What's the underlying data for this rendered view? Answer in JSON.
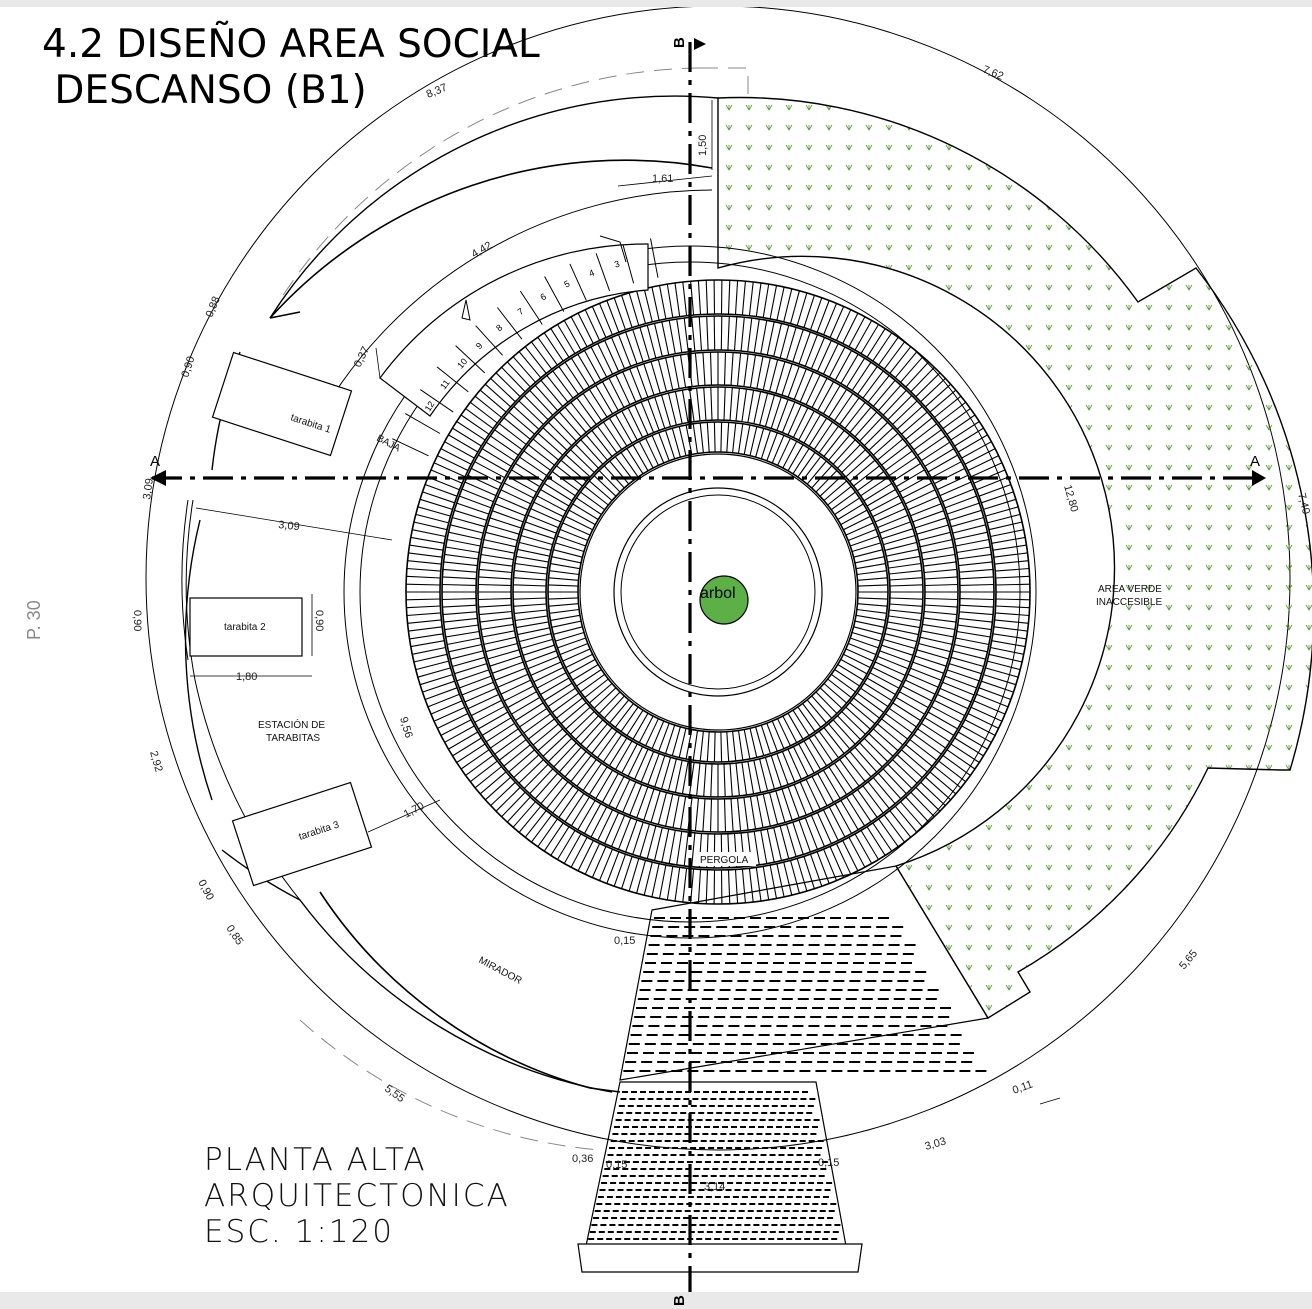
{
  "title": "4.2 DISEÑO AREA SOCIAL\n DESCANSO (B1)",
  "page_number": "P. 30",
  "caption": {
    "line1": "PLANTA ALTA",
    "line2": "ARQUITECTONICA",
    "line3": "ESC. 1:120"
  },
  "section_marks": {
    "horizontal_left": "A",
    "horizontal_right": "A",
    "vertical_top": "B",
    "vertical_bottom": "B"
  },
  "labels": {
    "tarabita_1": "tarabita 1",
    "tarabita_2": "tarabita 2",
    "tarabita_3": "tarabita 3",
    "estacion_line1": "ESTACIÓN DE",
    "estacion_line2": "TARABITAS",
    "mirador": "MIRADOR",
    "pergola": "PERGOLA",
    "arbol": "arbol",
    "area_verde_line1": "AREA VERDE",
    "area_verde_line2": "INACCESIBLE",
    "baja": "BAJA"
  },
  "stairs": [
    "3",
    "4",
    "5",
    "6",
    "7",
    "8",
    "9",
    "10",
    "11",
    "12"
  ],
  "dimensions": {
    "d_837": "8,37",
    "d_762": "7,62",
    "d_150": "1,50",
    "d_161": "1,61",
    "d_442": "4,42",
    "d_037": "0,37",
    "d_088": "0,88",
    "d_090a": "0,90",
    "d_309a": "3,09",
    "d_309b": "3,09",
    "d_090b": "0,90",
    "d_090c": "0,90",
    "d_180": "1,80",
    "d_292": "2,92",
    "d_956": "9,56",
    "d_170": "1,70",
    "d_1280": "12,80",
    "d_740": "7,40",
    "d_015a": "0,15",
    "d_090d": "0,90",
    "d_085": "0,85",
    "d_555": "5,55",
    "d_565": "5,65",
    "d_011": "0,11",
    "d_303": "3,03",
    "d_036": "0,36",
    "d_015b": "0,15",
    "d_015c": "0,15",
    "d_314": "3,14"
  },
  "colors": {
    "line": "#000000",
    "green_hatch": "#4c9a2a",
    "tree_fill": "#5cb046",
    "frame": "#e9e9e9",
    "page_number": "#888888"
  }
}
